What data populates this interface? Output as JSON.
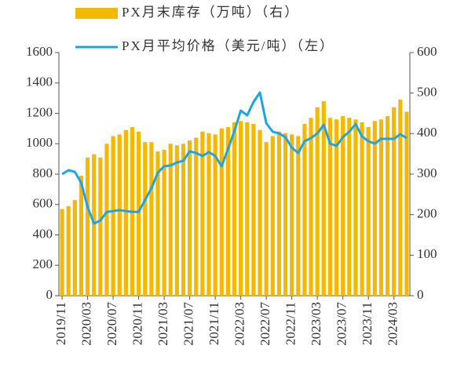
{
  "chart_data": {
    "type": "bar-line",
    "categories": [
      "2019/11",
      null,
      null,
      null,
      "2020/03",
      null,
      null,
      null,
      "2020/07",
      null,
      null,
      null,
      "2020/11",
      null,
      null,
      null,
      "2021/03",
      null,
      null,
      null,
      "2021/07",
      null,
      null,
      null,
      "2021/11",
      null,
      null,
      null,
      "2022/03",
      null,
      null,
      null,
      "2022/07",
      null,
      null,
      null,
      "2022/11",
      null,
      null,
      null,
      "2023/03",
      null,
      null,
      null,
      "2023/07",
      null,
      null,
      null,
      "2023/11",
      null,
      null,
      null,
      "2024/03",
      null,
      null
    ],
    "series": [
      {
        "name": "PX月末库存（万吨）（右）",
        "type": "bar",
        "axis": "y2",
        "color": "#f5b800",
        "values": [
          214,
          221,
          236,
          296,
          341,
          349,
          341,
          375,
          394,
          398,
          409,
          416,
          405,
          379,
          379,
          356,
          360,
          375,
          371,
          375,
          383,
          390,
          405,
          401,
          398,
          413,
          416,
          428,
          431,
          428,
          424,
          409,
          379,
          394,
          405,
          401,
          398,
          394,
          424,
          439,
          465,
          480,
          439,
          435,
          443,
          439,
          435,
          428,
          416,
          431,
          435,
          443,
          465,
          484,
          454
        ]
      },
      {
        "name": "PX月平均价格（美元/吨）（左）",
        "type": "line",
        "axis": "y",
        "color": "#1ea5e0",
        "values": [
          800,
          826,
          815,
          743,
          583,
          475,
          495,
          552,
          557,
          563,
          557,
          552,
          552,
          630,
          707,
          810,
          852,
          857,
          877,
          888,
          950,
          939,
          919,
          945,
          919,
          852,
          965,
          1084,
          1218,
          1187,
          1275,
          1337,
          1135,
          1079,
          1068,
          1043,
          975,
          939,
          1017,
          1037,
          1068,
          1125,
          1001,
          986,
          1043,
          1079,
          1130,
          1048,
          1017,
          1001,
          1032,
          1032,
          1032,
          1063,
          1037
        ]
      }
    ],
    "ylim": [
      0,
      1600
    ],
    "yticks": [
      0,
      200,
      400,
      600,
      800,
      1000,
      1200,
      1400,
      1600
    ],
    "y2lim": [
      0,
      600
    ],
    "y2ticks": [
      0,
      100,
      200,
      300,
      400,
      500,
      600
    ]
  }
}
